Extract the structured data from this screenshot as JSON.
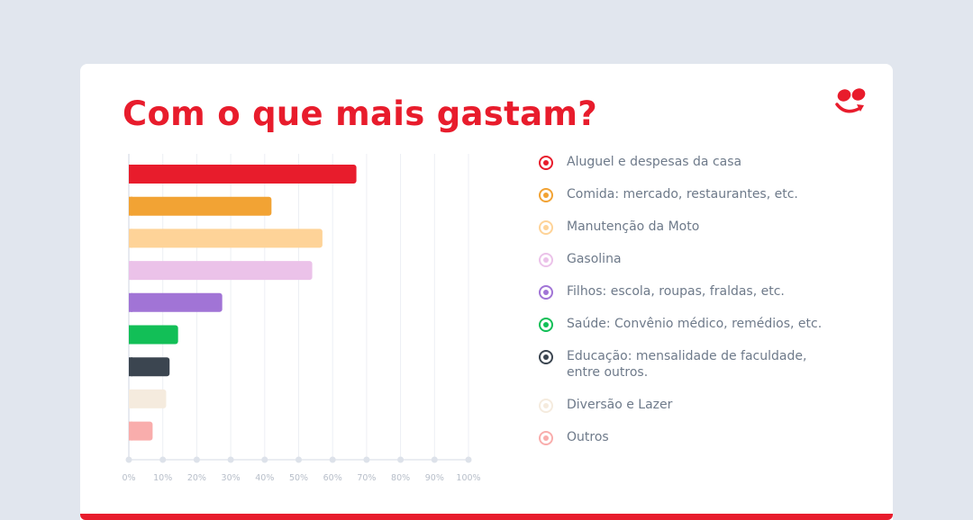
{
  "header": {
    "title": "Com o que mais gastam?"
  },
  "colors": {
    "background": "#e1e6ee",
    "accent": "#e81c2c",
    "grid": "#eceff4",
    "axis_dot": "#dde2ea",
    "tick_text": "#b7bec9",
    "legend_text": "#6e7a8a"
  },
  "logo": {
    "icon": "smile-arrow-logo-icon"
  },
  "chart_data": {
    "type": "bar",
    "orientation": "horizontal",
    "title": "Com o que mais gastam?",
    "xlabel": "",
    "ylabel": "",
    "xlim": [
      0,
      100
    ],
    "grid": true,
    "legend_position": "right",
    "x_ticks": [
      "0%",
      "10%",
      "20%",
      "30%",
      "40%",
      "50%",
      "60%",
      "70%",
      "80%",
      "90%",
      "100%"
    ],
    "categories": [
      "Aluguel e despesas da casa",
      "Comida: mercado, restaurantes, etc.",
      "Manutenção da Moto",
      "Gasolina",
      "Filhos: escola, roupas, fraldas, etc.",
      "Saúde: Convênio médico, remédios, etc.",
      "Educação: mensalidade de faculdade, entre outros.",
      "Diversão e Lazer",
      "Outros"
    ],
    "values": [
      67,
      42,
      57,
      54,
      27.5,
      14.5,
      12,
      11,
      7
    ],
    "colors": [
      "#e81c2c",
      "#f2a334",
      "#fed398",
      "#ebc2e9",
      "#a174d6",
      "#12bf57",
      "#3b4550",
      "#f5ebde",
      "#f9adac"
    ],
    "unit": "%"
  }
}
